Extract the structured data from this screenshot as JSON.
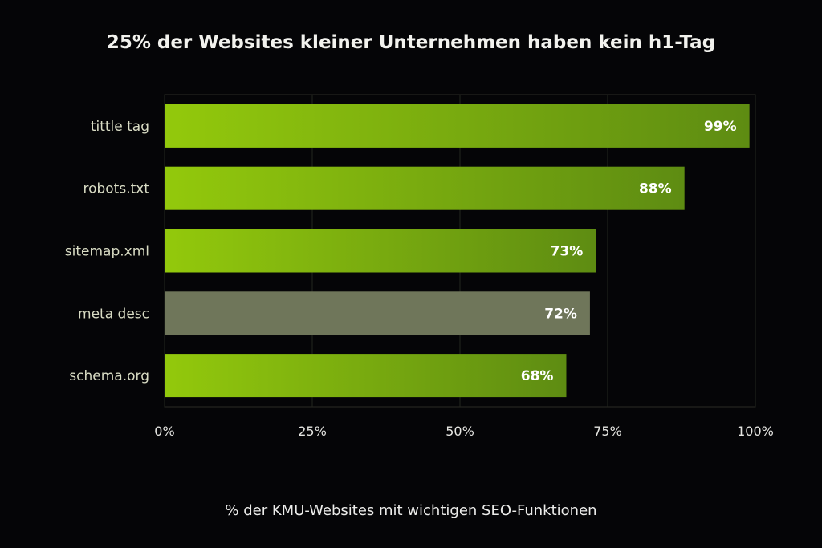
{
  "chart_data": {
    "type": "bar",
    "orientation": "horizontal",
    "title": "25% der Websites kleiner Unternehmen haben kein h1-Tag",
    "xlabel": "% der KMU-Websites mit wichtigen SEO-Funktionen",
    "ylabel": "",
    "categories": [
      "tittle tag",
      "robots.txt",
      "sitemap.xml",
      "meta desc",
      "schema.org"
    ],
    "values": [
      99,
      88,
      73,
      72,
      68
    ],
    "value_labels": [
      "99%",
      "88%",
      "73%",
      "72%",
      "68%"
    ],
    "xlim": [
      0,
      100
    ],
    "xticks": [
      0,
      25,
      50,
      75,
      100
    ],
    "xtick_labels": [
      "0%",
      "25%",
      "50%",
      "75%",
      "100%"
    ],
    "grid": "vertical",
    "colors": {
      "bar_start": "#93c90c",
      "bar_end": "#5e8c12",
      "highlight": "#6f765a",
      "background": "#050507"
    },
    "highlighted_category": "meta desc"
  }
}
